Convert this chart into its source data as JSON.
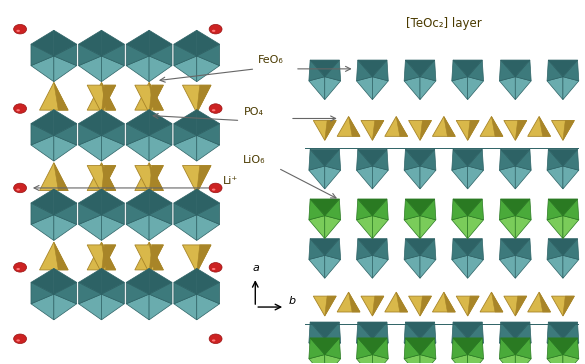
{
  "title_right": "[TeOc₂] layer",
  "labels": {
    "FeO6": "FeO₆",
    "PO4": "PO₄",
    "LiO6": "LiO₆",
    "Li": "Li⁺"
  },
  "colors": {
    "teal": "#4e8d8f",
    "teal_dark": "#2d6265",
    "teal_mid": "#3d7a7c",
    "teal_light": "#6aacae",
    "yellow": "#d9b84a",
    "yellow_dark": "#a88528",
    "yellow_light": "#f0d870",
    "green": "#4aaa3a",
    "green_dark": "#2a7a22",
    "green_light": "#7acc5a",
    "red": "#cc2222",
    "red_dark": "#991111",
    "background": "#ffffff",
    "text": "#4a3a00",
    "arrow": "#666666"
  },
  "figsize": [
    5.85,
    3.64
  ],
  "dpi": 100
}
